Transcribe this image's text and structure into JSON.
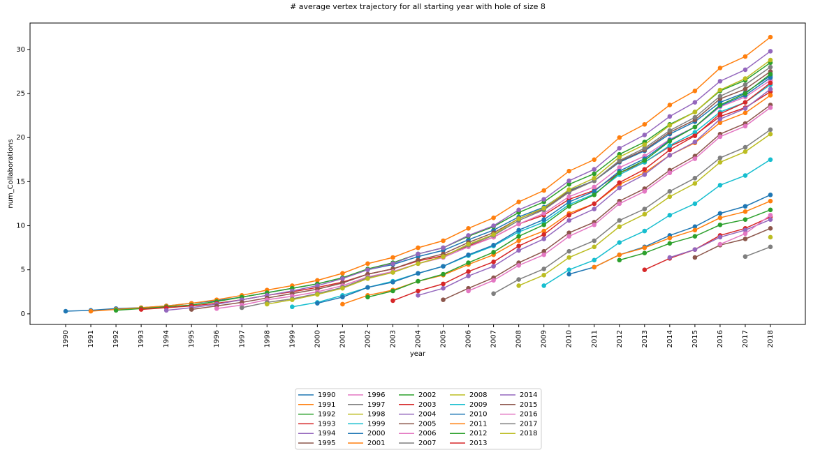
{
  "chart_data": {
    "type": "line",
    "title": "# average vertex trajectory for all starting year with hole of size 8",
    "x_label": "year",
    "y_label": "num_Collaborations",
    "categories": [
      "1990",
      "1991",
      "1992",
      "1993",
      "1994",
      "1995",
      "1996",
      "1997",
      "1998",
      "1999",
      "2000",
      "2001",
      "2002",
      "2003",
      "2004",
      "2005",
      "2006",
      "2007",
      "2008",
      "2009",
      "2010",
      "2011",
      "2012",
      "2013",
      "2014",
      "2015",
      "2016",
      "2017",
      "2018"
    ],
    "ylim": [
      -1.2,
      33.0
    ],
    "yticks": [
      0,
      5,
      10,
      15,
      20,
      25,
      30
    ],
    "grid": false,
    "markers": true,
    "legend": "below",
    "series": [
      {
        "name": "1990",
        "color": "#1f77b4",
        "values": [
          0.3,
          0.4,
          0.6,
          0.7,
          0.9,
          1.2,
          1.5,
          1.9,
          2.4,
          2.9,
          3.4,
          4.1,
          5.0,
          5.6,
          6.5,
          7.2,
          8.4,
          9.5,
          11.0,
          12.1,
          14.0,
          15.1,
          17.2,
          18.5,
          20.4,
          21.8,
          24.0,
          25.1,
          27.0
        ]
      },
      {
        "name": "1991",
        "color": "#ff7f0e",
        "values": [
          null,
          0.3,
          0.5,
          0.7,
          0.9,
          1.2,
          1.6,
          2.1,
          2.7,
          3.2,
          3.8,
          4.6,
          5.7,
          6.4,
          7.5,
          8.3,
          9.7,
          10.9,
          12.7,
          14.0,
          16.2,
          17.5,
          20.0,
          21.5,
          23.7,
          25.3,
          27.9,
          29.2,
          31.4
        ]
      },
      {
        "name": "1992",
        "color": "#2ca02c",
        "values": [
          null,
          null,
          0.4,
          0.6,
          0.8,
          1.0,
          1.4,
          1.9,
          2.4,
          2.9,
          3.4,
          4.1,
          5.1,
          5.8,
          6.8,
          7.5,
          8.8,
          9.9,
          11.5,
          12.7,
          14.7,
          15.9,
          18.1,
          19.5,
          21.5,
          22.9,
          25.3,
          26.5,
          28.5
        ]
      },
      {
        "name": "1993",
        "color": "#d62728",
        "values": [
          null,
          null,
          null,
          0.5,
          0.7,
          0.9,
          1.2,
          1.6,
          2.1,
          2.5,
          3.0,
          3.6,
          4.5,
          5.1,
          6.0,
          6.6,
          7.7,
          8.7,
          10.2,
          11.2,
          13.0,
          14.0,
          16.0,
          17.2,
          19.0,
          20.3,
          22.4,
          23.4,
          25.2
        ]
      },
      {
        "name": "1994",
        "color": "#9467bd",
        "values": [
          null,
          null,
          null,
          null,
          0.4,
          0.7,
          1.1,
          1.6,
          2.1,
          2.6,
          3.2,
          4.0,
          5.0,
          5.7,
          6.8,
          7.5,
          8.9,
          10.0,
          11.8,
          13.0,
          15.1,
          16.4,
          18.8,
          20.3,
          22.4,
          24.0,
          26.4,
          27.7,
          29.8
        ]
      },
      {
        "name": "1995",
        "color": "#8c564b",
        "values": [
          null,
          null,
          null,
          null,
          null,
          0.5,
          0.9,
          1.3,
          1.8,
          2.3,
          2.8,
          3.5,
          4.5,
          5.1,
          6.1,
          6.8,
          8.1,
          9.2,
          10.8,
          11.9,
          13.9,
          15.1,
          17.3,
          18.6,
          20.6,
          22.0,
          24.4,
          25.5,
          27.5
        ]
      },
      {
        "name": "1996",
        "color": "#e377c2",
        "values": [
          null,
          null,
          null,
          null,
          null,
          null,
          0.6,
          1.0,
          1.6,
          2.0,
          2.5,
          3.2,
          4.2,
          4.8,
          5.7,
          6.4,
          7.6,
          8.7,
          10.2,
          11.4,
          13.3,
          14.4,
          16.6,
          17.9,
          19.8,
          21.2,
          23.5,
          24.6,
          26.5
        ]
      },
      {
        "name": "1997",
        "color": "#7f7f7f",
        "values": [
          null,
          null,
          null,
          null,
          null,
          null,
          null,
          0.7,
          1.3,
          1.7,
          2.3,
          3.0,
          4.1,
          4.7,
          5.7,
          6.5,
          7.8,
          8.9,
          10.6,
          11.8,
          13.8,
          15.1,
          17.4,
          18.8,
          20.8,
          22.3,
          24.7,
          26.0,
          28.0
        ]
      },
      {
        "name": "1998",
        "color": "#bcbd22",
        "values": [
          null,
          null,
          null,
          null,
          null,
          null,
          null,
          null,
          1.1,
          1.6,
          2.2,
          2.9,
          4.0,
          4.7,
          5.7,
          6.5,
          7.9,
          9.0,
          10.8,
          12.0,
          14.1,
          15.4,
          17.8,
          19.2,
          21.4,
          22.9,
          25.4,
          26.7,
          28.8
        ]
      },
      {
        "name": "1999",
        "color": "#17becf",
        "values": [
          null,
          null,
          null,
          null,
          null,
          null,
          null,
          null,
          null,
          0.8,
          1.3,
          2.1,
          3.0,
          3.7,
          4.6,
          5.4,
          6.6,
          7.7,
          9.3,
          10.4,
          12.4,
          13.6,
          15.8,
          17.2,
          19.1,
          20.6,
          22.9,
          24.0,
          26.0
        ]
      },
      {
        "name": "2000",
        "color": "#1f77b4",
        "values": [
          null,
          null,
          null,
          null,
          null,
          null,
          null,
          null,
          null,
          null,
          1.2,
          1.9,
          3.0,
          3.6,
          4.6,
          5.4,
          6.7,
          7.8,
          9.5,
          10.7,
          12.7,
          13.9,
          16.2,
          17.6,
          19.7,
          21.2,
          23.6,
          24.8,
          26.8
        ]
      },
      {
        "name": "2001",
        "color": "#ff7f0e",
        "values": [
          null,
          null,
          null,
          null,
          null,
          null,
          null,
          null,
          null,
          null,
          null,
          1.1,
          2.1,
          2.7,
          3.7,
          4.4,
          5.6,
          6.7,
          8.3,
          9.4,
          11.4,
          12.5,
          14.7,
          16.0,
          18.0,
          19.4,
          21.7,
          22.8,
          24.8
        ]
      },
      {
        "name": "2002",
        "color": "#2ca02c",
        "values": [
          null,
          null,
          null,
          null,
          null,
          null,
          null,
          null,
          null,
          null,
          null,
          null,
          1.9,
          2.6,
          3.7,
          4.5,
          5.8,
          7.0,
          8.8,
          10.1,
          12.2,
          13.5,
          16.0,
          17.4,
          19.6,
          21.2,
          23.7,
          25.0,
          27.2
        ]
      },
      {
        "name": "2003",
        "color": "#d62728",
        "values": [
          null,
          null,
          null,
          null,
          null,
          null,
          null,
          null,
          null,
          null,
          null,
          null,
          null,
          1.5,
          2.6,
          3.4,
          4.8,
          5.9,
          7.7,
          9.0,
          11.2,
          12.5,
          14.9,
          16.4,
          18.6,
          20.2,
          22.7,
          24.0,
          26.2
        ]
      },
      {
        "name": "2004",
        "color": "#9467bd",
        "values": [
          null,
          null,
          null,
          null,
          null,
          null,
          null,
          null,
          null,
          null,
          null,
          null,
          null,
          null,
          2.1,
          2.9,
          4.3,
          5.4,
          7.2,
          8.5,
          10.6,
          11.9,
          14.3,
          15.8,
          18.0,
          19.5,
          22.1,
          23.3,
          25.5
        ]
      },
      {
        "name": "2005",
        "color": "#8c564b",
        "values": [
          null,
          null,
          null,
          null,
          null,
          null,
          null,
          null,
          null,
          null,
          null,
          null,
          null,
          null,
          null,
          1.6,
          2.9,
          4.1,
          5.8,
          7.1,
          9.2,
          10.4,
          12.8,
          14.2,
          16.3,
          17.9,
          20.4,
          21.6,
          23.7
        ]
      },
      {
        "name": "2006",
        "color": "#e377c2",
        "values": [
          null,
          null,
          null,
          null,
          null,
          null,
          null,
          null,
          null,
          null,
          null,
          null,
          null,
          null,
          null,
          null,
          2.6,
          3.8,
          5.5,
          6.7,
          8.8,
          10.1,
          12.5,
          13.9,
          16.0,
          17.6,
          20.1,
          21.3,
          23.4
        ]
      },
      {
        "name": "2007",
        "color": "#7f7f7f",
        "values": [
          null,
          null,
          null,
          null,
          null,
          null,
          null,
          null,
          null,
          null,
          null,
          null,
          null,
          null,
          null,
          null,
          null,
          2.3,
          3.9,
          5.1,
          7.1,
          8.3,
          10.6,
          11.9,
          13.9,
          15.4,
          17.7,
          18.9,
          20.9
        ]
      },
      {
        "name": "2008",
        "color": "#bcbd22",
        "values": [
          null,
          null,
          null,
          null,
          null,
          null,
          null,
          null,
          null,
          null,
          null,
          null,
          null,
          null,
          null,
          null,
          null,
          null,
          3.2,
          4.4,
          6.4,
          7.6,
          9.9,
          11.3,
          13.3,
          14.8,
          17.2,
          18.4,
          20.4
        ]
      },
      {
        "name": "2009",
        "color": "#17becf",
        "values": [
          null,
          null,
          null,
          null,
          null,
          null,
          null,
          null,
          null,
          null,
          null,
          null,
          null,
          null,
          null,
          null,
          null,
          null,
          null,
          3.2,
          5.0,
          6.1,
          8.1,
          9.4,
          11.2,
          12.5,
          14.6,
          15.7,
          17.5
        ]
      },
      {
        "name": "2010",
        "color": "#1f77b4",
        "values": [
          null,
          null,
          null,
          null,
          null,
          null,
          null,
          null,
          null,
          null,
          null,
          null,
          null,
          null,
          null,
          null,
          null,
          null,
          null,
          null,
          4.5,
          5.3,
          6.7,
          7.6,
          8.9,
          9.9,
          11.4,
          12.2,
          13.5
        ]
      },
      {
        "name": "2011",
        "color": "#ff7f0e",
        "values": [
          null,
          null,
          null,
          null,
          null,
          null,
          null,
          null,
          null,
          null,
          null,
          null,
          null,
          null,
          null,
          null,
          null,
          null,
          null,
          null,
          null,
          5.3,
          6.7,
          7.5,
          8.6,
          9.5,
          10.9,
          11.6,
          12.8
        ]
      },
      {
        "name": "2012",
        "color": "#2ca02c",
        "values": [
          null,
          null,
          null,
          null,
          null,
          null,
          null,
          null,
          null,
          null,
          null,
          null,
          null,
          null,
          null,
          null,
          null,
          null,
          null,
          null,
          null,
          null,
          6.1,
          6.9,
          8.0,
          8.8,
          10.1,
          10.7,
          11.8
        ]
      },
      {
        "name": "2013",
        "color": "#d62728",
        "values": [
          null,
          null,
          null,
          null,
          null,
          null,
          null,
          null,
          null,
          null,
          null,
          null,
          null,
          null,
          null,
          null,
          null,
          null,
          null,
          null,
          null,
          null,
          null,
          5.0,
          6.3,
          7.3,
          8.9,
          9.7,
          11.0
        ]
      },
      {
        "name": "2014",
        "color": "#9467bd",
        "values": [
          null,
          null,
          null,
          null,
          null,
          null,
          null,
          null,
          null,
          null,
          null,
          null,
          null,
          null,
          null,
          null,
          null,
          null,
          null,
          null,
          null,
          null,
          null,
          null,
          6.4,
          7.3,
          8.7,
          9.5,
          10.7
        ]
      },
      {
        "name": "2015",
        "color": "#8c564b",
        "values": [
          null,
          null,
          null,
          null,
          null,
          null,
          null,
          null,
          null,
          null,
          null,
          null,
          null,
          null,
          null,
          null,
          null,
          null,
          null,
          null,
          null,
          null,
          null,
          null,
          null,
          6.4,
          7.8,
          8.5,
          9.7
        ]
      },
      {
        "name": "2016",
        "color": "#e377c2",
        "values": [
          null,
          null,
          null,
          null,
          null,
          null,
          null,
          null,
          null,
          null,
          null,
          null,
          null,
          null,
          null,
          null,
          null,
          null,
          null,
          null,
          null,
          null,
          null,
          null,
          null,
          null,
          7.9,
          9.1,
          11.2
        ]
      },
      {
        "name": "2017",
        "color": "#7f7f7f",
        "values": [
          null,
          null,
          null,
          null,
          null,
          null,
          null,
          null,
          null,
          null,
          null,
          null,
          null,
          null,
          null,
          null,
          null,
          null,
          null,
          null,
          null,
          null,
          null,
          null,
          null,
          null,
          null,
          6.5,
          7.6
        ]
      },
      {
        "name": "2018",
        "color": "#bcbd22",
        "values": [
          null,
          null,
          null,
          null,
          null,
          null,
          null,
          null,
          null,
          null,
          null,
          null,
          null,
          null,
          null,
          null,
          null,
          null,
          null,
          null,
          null,
          null,
          null,
          null,
          null,
          null,
          null,
          null,
          8.7
        ]
      }
    ]
  }
}
